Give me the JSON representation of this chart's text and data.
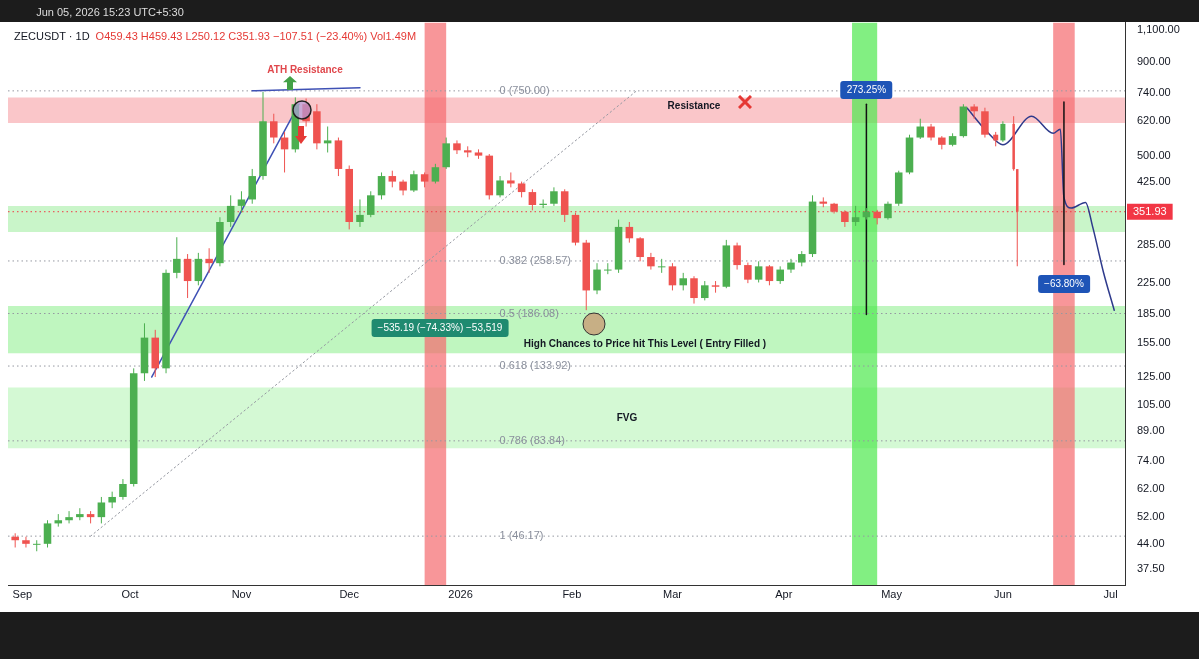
{
  "chart_data": {
    "type": "candlestick",
    "title": "ZECUSDT · 1D",
    "subtitle": "O459.43 H459.43 L250.12 C351.93 −107.51 (−23.40%) Vol1.49M",
    "log": true,
    "xlim": [
      "2025-08-28",
      "2026-07-05"
    ],
    "xticks": [
      {
        "value": "2025-09-01",
        "label": "Sep"
      },
      {
        "value": "2025-10-01",
        "label": "Oct"
      },
      {
        "value": "2025-11-01",
        "label": "Nov"
      },
      {
        "value": "2025-12-01",
        "label": "Dec"
      },
      {
        "value": "2026-01-01",
        "label": "2026"
      },
      {
        "value": "2026-02-01",
        "label": "Feb"
      },
      {
        "value": "2026-03-01",
        "label": "Mar"
      },
      {
        "value": "2026-04-01",
        "label": "Apr"
      },
      {
        "value": "2026-05-01",
        "label": "May"
      },
      {
        "value": "2026-06-01",
        "label": "Jun"
      },
      {
        "value": "2026-07-01",
        "label": "Jul"
      }
    ],
    "ylim": [
      34,
      1150
    ],
    "yticks": [
      {
        "value": 37.5,
        "label": "37.50"
      },
      {
        "value": 44,
        "label": "44.00"
      },
      {
        "value": 52,
        "label": "52.00"
      },
      {
        "value": 62,
        "label": "62.00"
      },
      {
        "value": 74,
        "label": "74.00"
      },
      {
        "value": 89,
        "label": "89.00"
      },
      {
        "value": 105,
        "label": "105.00"
      },
      {
        "value": 125,
        "label": "125.00"
      },
      {
        "value": 155,
        "label": "155.00"
      },
      {
        "value": 185,
        "label": "185.00"
      },
      {
        "value": 225,
        "label": "225.00"
      },
      {
        "value": 285,
        "label": "285.00"
      },
      {
        "value": 425,
        "label": "425.00"
      },
      {
        "value": 500,
        "label": "500.00"
      },
      {
        "value": 620,
        "label": "620.00"
      },
      {
        "value": 740,
        "label": "740.00"
      },
      {
        "value": 900,
        "label": "900.00"
      },
      {
        "value": 1100,
        "label": "1,100.00"
      }
    ],
    "series": [
      {
        "x": [
          "2025-08-30",
          "2025-09-02",
          "2025-09-05",
          "2025-09-08",
          "2025-09-11",
          "2025-09-14",
          "2025-09-17",
          "2025-09-20",
          "2025-09-23",
          "2025-09-26",
          "2025-09-29",
          "2025-10-02",
          "2025-10-05",
          "2025-10-08",
          "2025-10-11",
          "2025-10-14",
          "2025-10-17",
          "2025-10-20",
          "2025-10-23",
          "2025-10-26",
          "2025-10-29",
          "2025-11-01",
          "2025-11-04",
          "2025-11-07",
          "2025-11-10",
          "2025-11-13",
          "2025-11-16",
          "2025-11-19",
          "2025-11-22",
          "2025-11-25",
          "2025-11-28",
          "2025-12-01",
          "2025-12-04",
          "2025-12-07",
          "2025-12-10",
          "2025-12-13",
          "2025-12-16",
          "2025-12-19",
          "2025-12-22",
          "2025-12-25",
          "2025-12-28",
          "2025-12-31",
          "2026-01-03",
          "2026-01-06",
          "2026-01-09",
          "2026-01-12",
          "2026-01-15",
          "2026-01-18",
          "2026-01-21",
          "2026-01-24",
          "2026-01-27",
          "2026-01-30",
          "2026-02-02",
          "2026-02-05",
          "2026-02-08",
          "2026-02-11",
          "2026-02-14",
          "2026-02-17",
          "2026-02-20",
          "2026-02-23",
          "2026-02-26",
          "2026-03-01",
          "2026-03-04",
          "2026-03-07",
          "2026-03-10",
          "2026-03-13",
          "2026-03-16",
          "2026-03-19",
          "2026-03-22",
          "2026-03-25",
          "2026-03-28",
          "2026-03-31",
          "2026-04-03",
          "2026-04-06",
          "2026-04-09",
          "2026-04-12",
          "2026-04-15",
          "2026-04-18",
          "2026-04-21",
          "2026-04-24",
          "2026-04-27",
          "2026-04-30",
          "2026-05-03",
          "2026-05-06",
          "2026-05-09",
          "2026-05-12",
          "2026-05-15",
          "2026-05-18",
          "2026-05-21",
          "2026-05-24",
          "2026-05-27",
          "2026-05-30",
          "2026-06-01",
          "2026-06-04",
          "2026-06-05"
        ],
        "ohlc": [
          [
            46,
            47,
            43,
            45
          ],
          [
            45,
            46,
            43,
            44
          ],
          [
            44,
            45,
            42,
            44
          ],
          [
            44,
            51,
            43,
            50
          ],
          [
            50,
            53,
            49,
            51
          ],
          [
            51,
            54,
            50,
            52
          ],
          [
            52,
            55,
            51,
            53
          ],
          [
            53,
            54,
            50,
            52
          ],
          [
            52,
            59,
            50,
            57
          ],
          [
            57,
            61,
            55,
            59
          ],
          [
            59,
            66,
            58,
            64
          ],
          [
            64,
            132,
            63,
            128
          ],
          [
            128,
            175,
            122,
            160
          ],
          [
            160,
            168,
            125,
            132
          ],
          [
            132,
            245,
            128,
            240
          ],
          [
            240,
            300,
            232,
            262
          ],
          [
            262,
            270,
            205,
            228
          ],
          [
            228,
            272,
            222,
            262
          ],
          [
            262,
            280,
            240,
            255
          ],
          [
            255,
            340,
            250,
            330
          ],
          [
            330,
            390,
            320,
            365
          ],
          [
            365,
            400,
            350,
            380
          ],
          [
            380,
            460,
            370,
            440
          ],
          [
            440,
            745,
            430,
            620
          ],
          [
            620,
            650,
            540,
            560
          ],
          [
            560,
            580,
            450,
            520
          ],
          [
            520,
            720,
            510,
            690
          ],
          [
            690,
            715,
            600,
            620
          ],
          [
            660,
            690,
            520,
            540
          ],
          [
            540,
            600,
            510,
            550
          ],
          [
            550,
            560,
            440,
            460
          ],
          [
            460,
            470,
            315,
            330
          ],
          [
            330,
            380,
            320,
            345
          ],
          [
            345,
            400,
            340,
            390
          ],
          [
            390,
            450,
            380,
            440
          ],
          [
            440,
            455,
            410,
            425
          ],
          [
            425,
            430,
            390,
            402
          ],
          [
            402,
            455,
            398,
            445
          ],
          [
            445,
            450,
            410,
            425
          ],
          [
            425,
            475,
            420,
            465
          ],
          [
            465,
            560,
            460,
            540
          ],
          [
            540,
            550,
            505,
            517
          ],
          [
            517,
            530,
            495,
            510
          ],
          [
            510,
            520,
            490,
            500
          ],
          [
            500,
            505,
            380,
            390
          ],
          [
            390,
            440,
            385,
            428
          ],
          [
            428,
            450,
            410,
            420
          ],
          [
            420,
            425,
            385,
            398
          ],
          [
            398,
            405,
            355,
            367
          ],
          [
            367,
            380,
            360,
            370
          ],
          [
            370,
            410,
            365,
            400
          ],
          [
            400,
            405,
            330,
            345
          ],
          [
            345,
            350,
            285,
            290
          ],
          [
            290,
            295,
            190,
            215
          ],
          [
            215,
            255,
            210,
            245
          ],
          [
            245,
            255,
            238,
            245
          ],
          [
            245,
            335,
            240,
            320
          ],
          [
            320,
            330,
            290,
            298
          ],
          [
            298,
            300,
            258,
            265
          ],
          [
            265,
            272,
            245,
            250
          ],
          [
            250,
            262,
            240,
            250
          ],
          [
            250,
            255,
            215,
            222
          ],
          [
            222,
            240,
            215,
            232
          ],
          [
            232,
            235,
            198,
            205
          ],
          [
            205,
            228,
            202,
            222
          ],
          [
            222,
            228,
            212,
            220
          ],
          [
            220,
            295,
            218,
            285
          ],
          [
            285,
            290,
            245,
            252
          ],
          [
            252,
            256,
            225,
            230
          ],
          [
            230,
            258,
            226,
            250
          ],
          [
            250,
            252,
            222,
            228
          ],
          [
            228,
            250,
            224,
            245
          ],
          [
            245,
            262,
            240,
            256
          ],
          [
            256,
            275,
            250,
            270
          ],
          [
            270,
            390,
            265,
            375
          ],
          [
            375,
            385,
            362,
            370
          ],
          [
            370,
            372,
            348,
            352
          ],
          [
            352,
            355,
            320,
            330
          ],
          [
            330,
            365,
            322,
            340
          ],
          [
            340,
            360,
            335,
            352
          ],
          [
            352,
            356,
            325,
            338
          ],
          [
            338,
            375,
            335,
            370
          ],
          [
            370,
            455,
            365,
            450
          ],
          [
            450,
            570,
            445,
            560
          ],
          [
            560,
            630,
            555,
            600
          ],
          [
            600,
            610,
            550,
            560
          ],
          [
            560,
            565,
            520,
            535
          ],
          [
            535,
            575,
            530,
            565
          ],
          [
            565,
            690,
            560,
            680
          ],
          [
            680,
            690,
            630,
            660
          ],
          [
            660,
            675,
            560,
            570
          ],
          [
            570,
            580,
            530,
            550
          ],
          [
            550,
            620,
            545,
            610
          ],
          [
            610,
            640,
            455,
            459.43
          ],
          [
            459.43,
            459.43,
            250.12,
            351.93
          ]
        ],
        "colors": [
          "#ef5350",
          "#ef5350",
          "#4caf50",
          "#4caf50",
          "#4caf50",
          "#4caf50",
          "#4caf50",
          "#ef5350",
          "#4caf50",
          "#4caf50",
          "#4caf50",
          "#4caf50",
          "#4caf50",
          "#ef5350",
          "#4caf50",
          "#4caf50",
          "#ef5350",
          "#4caf50",
          "#ef5350",
          "#4caf50",
          "#4caf50",
          "#4caf50",
          "#4caf50",
          "#4caf50",
          "#ef5350",
          "#ef5350",
          "#4caf50",
          "#ef5350",
          "#ef5350",
          "#4caf50",
          "#ef5350",
          "#ef5350",
          "#4caf50",
          "#4caf50",
          "#4caf50",
          "#ef5350",
          "#ef5350",
          "#4caf50",
          "#ef5350",
          "#4caf50",
          "#4caf50",
          "#ef5350",
          "#ef5350",
          "#ef5350",
          "#ef5350",
          "#4caf50",
          "#ef5350",
          "#ef5350",
          "#ef5350",
          "#4caf50",
          "#4caf50",
          "#ef5350",
          "#ef5350",
          "#ef5350",
          "#4caf50",
          "#4caf50",
          "#4caf50",
          "#ef5350",
          "#ef5350",
          "#ef5350",
          "#4caf50",
          "#ef5350",
          "#4caf50",
          "#ef5350",
          "#4caf50",
          "#ef5350",
          "#4caf50",
          "#ef5350",
          "#ef5350",
          "#4caf50",
          "#ef5350",
          "#4caf50",
          "#4caf50",
          "#4caf50",
          "#4caf50",
          "#ef5350",
          "#ef5350",
          "#ef5350",
          "#4caf50",
          "#4caf50",
          "#ef5350",
          "#4caf50",
          "#4caf50",
          "#4caf50",
          "#4caf50",
          "#ef5350",
          "#ef5350",
          "#4caf50",
          "#4caf50",
          "#ef5350",
          "#ef5350",
          "#ef5350",
          "#4caf50",
          "#ef5350",
          "#ef5350"
        ]
      },
      {
        "type": "line",
        "x": [
          "2025-10-07",
          "2025-11-17"
        ],
        "values": [
          125,
          690
        ],
        "color": "#3f51b5",
        "line_style": "solid"
      },
      {
        "type": "line",
        "x": [
          "2025-11-04",
          "2025-12-04"
        ],
        "values": [
          750,
          765
        ],
        "color": "#3f51b5",
        "line_style": "solid"
      },
      {
        "type": "line",
        "x": [
          "2025-09-20",
          "2026-02-19"
        ],
        "values": [
          46.17,
          750
        ],
        "color": "#9598a1",
        "line_style": "dotted"
      },
      {
        "type": "line",
        "x": [
          "2026-04-24",
          "2026-04-24"
        ],
        "values": [
          185,
          690
        ],
        "color": "#111111",
        "line_style": "solid"
      },
      {
        "type": "line",
        "x": [
          "2026-06-18",
          "2026-06-18"
        ],
        "values": [
          700,
          253
        ],
        "color": "#111111",
        "line_style": "solid"
      },
      {
        "type": "line",
        "x": [
          "2026-05-22",
          "2026-05-28",
          "2026-06-01",
          "2026-06-09",
          "2026-06-15",
          "2026-06-17",
          "2026-06-18",
          "2026-06-20",
          "2026-06-24",
          "2026-06-26",
          "2026-06-29",
          "2026-07-02"
        ],
        "values": [
          674,
          575,
          535,
          640,
          575,
          590,
          385,
          360,
          373,
          320,
          241,
          190
        ],
        "color": "#2e3a8c",
        "line_style": "solid"
      }
    ],
    "ref_lines": [
      {
        "axis": "y",
        "value": 750,
        "label": "0 (750.00)",
        "line_style": "dotted"
      },
      {
        "axis": "y",
        "value": 258.57,
        "label": "0.382 (258.57)",
        "line_style": "dotted"
      },
      {
        "axis": "y",
        "value": 186.08,
        "label": "0.5 (186.08)",
        "line_style": "dotted"
      },
      {
        "axis": "y",
        "value": 133.92,
        "label": "0.618 (133.92)",
        "line_style": "dotted"
      },
      {
        "axis": "y",
        "value": 83.84,
        "label": "0.786 (83.84)",
        "line_style": "dotted"
      },
      {
        "axis": "y",
        "value": 46.17,
        "label": "1 (46.17)",
        "line_style": "dotted"
      },
      {
        "axis": "y",
        "value": 351.93,
        "label": "351.93",
        "color": "#f23645",
        "line_style": "dotted"
      }
    ],
    "bands": [
      {
        "axis": "y",
        "from": 613,
        "to": 720,
        "color": "#f9bcc0"
      },
      {
        "axis": "y",
        "from": 145,
        "to": 195,
        "color": "#b4f5b4"
      },
      {
        "axis": "y",
        "from": 80,
        "to": 117,
        "color": "#cdf8cd"
      },
      {
        "axis": "y",
        "from": 310,
        "to": 365,
        "color": "#bff3bf"
      },
      {
        "axis": "x",
        "from": "2025-12-22",
        "to": "2025-12-28",
        "color": "#f56a6e"
      },
      {
        "axis": "x",
        "from": "2026-04-20",
        "to": "2026-04-27",
        "color": "#4de84d"
      },
      {
        "axis": "x",
        "from": "2026-06-15",
        "to": "2026-06-21",
        "color": "#f56a6e"
      }
    ],
    "annotations": [
      "Jun 05, 2026 15:23 UTC+5:30",
      "ATH Resistance",
      "Resistance",
      "−535.19 (−74.33%) −53,519",
      "High Chances to Price hit This Level ( Entry Filled )",
      "FVG",
      {
        "text": "273.25%",
        "x": "2026-04-24",
        "y": 690
      },
      {
        "text": "−63.80%",
        "x": "2026-06-18",
        "y": 253
      }
    ]
  }
}
